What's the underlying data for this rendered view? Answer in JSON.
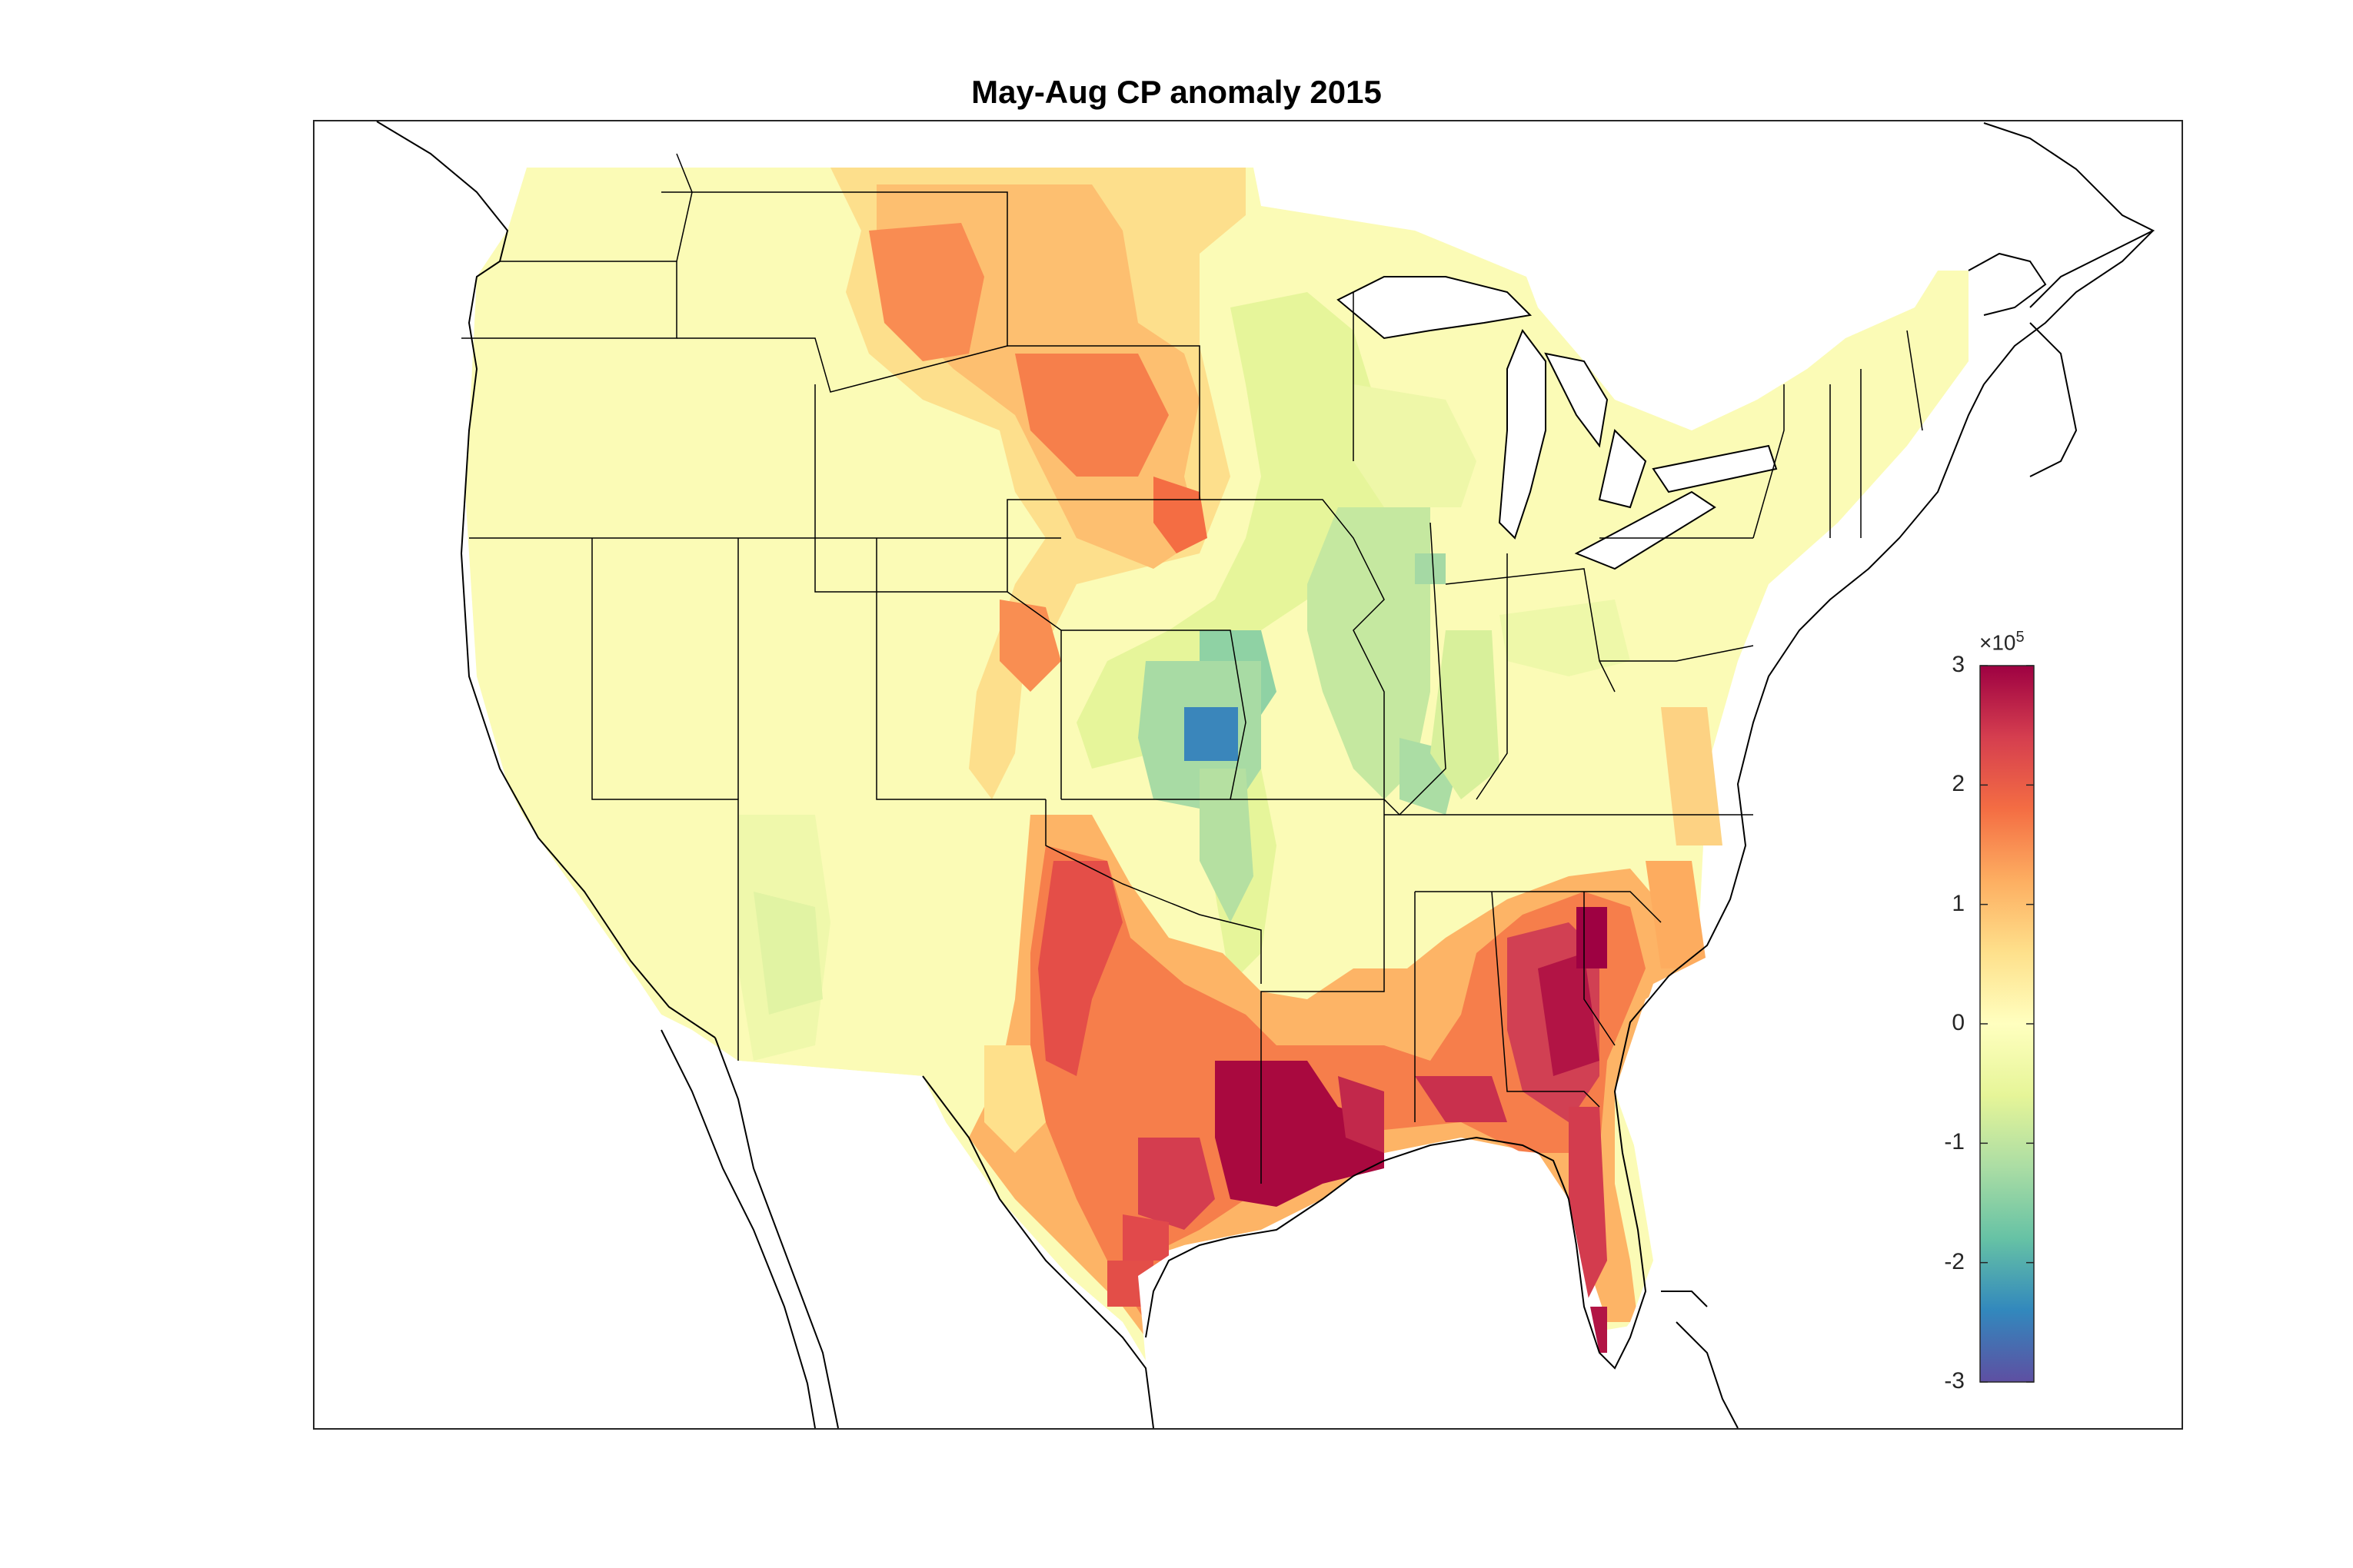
{
  "title": "May-Aug CP anomaly 2015",
  "colorbar": {
    "multiplier": "×10",
    "exponent": "5",
    "ticks": [
      "3",
      "2",
      "1",
      "0",
      "-1",
      "-2",
      "-3"
    ],
    "range": [
      -3,
      3
    ],
    "colors": [
      "#5e4fa2",
      "#3288bd",
      "#66c2a5",
      "#abdda4",
      "#e6f598",
      "#ffffbf",
      "#fee08b",
      "#fdae61",
      "#f46d43",
      "#d53e4f",
      "#9e0142"
    ]
  }
}
